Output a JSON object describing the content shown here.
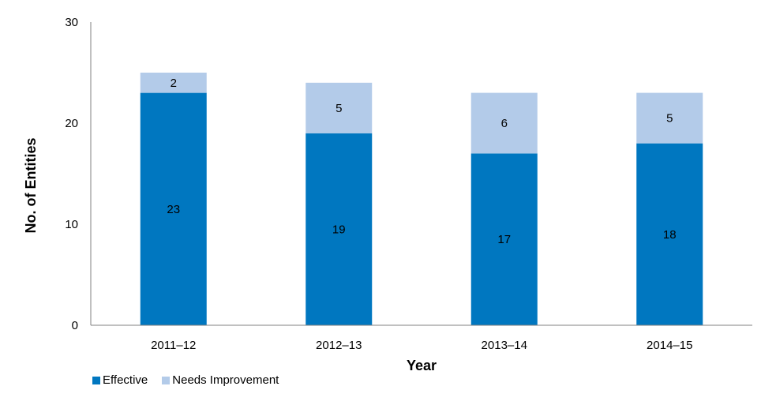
{
  "chart_data": {
    "type": "bar",
    "stacked": true,
    "categories": [
      "2011–12",
      "2012–13",
      "2013–14",
      "2014–15"
    ],
    "series": [
      {
        "name": "Effective",
        "values": [
          23,
          19,
          17,
          18
        ],
        "color": "#0077C0"
      },
      {
        "name": "Needs Improvement",
        "values": [
          2,
          5,
          6,
          5
        ],
        "color": "#B3CBE9"
      }
    ],
    "title": "",
    "xlabel": "Year",
    "ylabel": "No. of Entities",
    "ylim": [
      0,
      30
    ],
    "yticks": [
      0,
      10,
      20,
      30
    ],
    "grid": false,
    "data_labels": true,
    "legend_position": "bottom-left",
    "axis_color": "#808080"
  }
}
